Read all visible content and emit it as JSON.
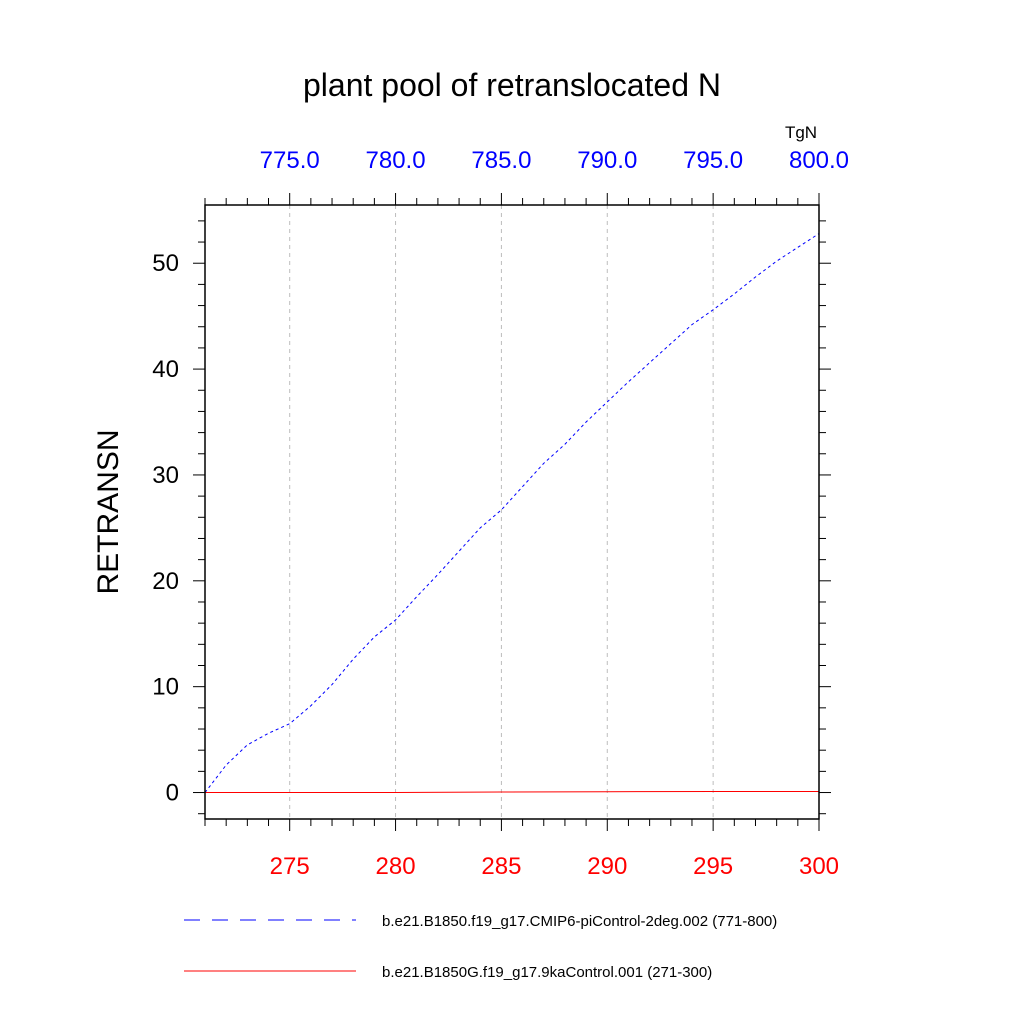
{
  "chart_data": {
    "type": "line",
    "title": "plant pool of retranslocated N",
    "units": "TgN",
    "ylabel": "RETRANSN",
    "ylim": [
      -2.5,
      55.5
    ],
    "yticks": [
      0,
      10,
      20,
      30,
      40,
      50
    ],
    "ytick_labels": [
      "0",
      "10",
      "20",
      "30",
      "40",
      "50"
    ],
    "bottom_axis": {
      "range": [
        271,
        300
      ],
      "ticks": [
        275,
        280,
        285,
        290,
        295,
        300
      ],
      "tick_labels": [
        "275",
        "280",
        "285",
        "290",
        "295",
        "300"
      ],
      "color": "#ff0000"
    },
    "top_axis": {
      "range": [
        771,
        800
      ],
      "ticks": [
        775,
        780,
        785,
        790,
        795,
        800
      ],
      "tick_labels": [
        "775.0",
        "780.0",
        "785.0",
        "790.0",
        "795.0",
        "800.0"
      ],
      "color": "#0000ff"
    },
    "grid": "vertical dashed",
    "legend_position": "bottom",
    "series": [
      {
        "name": "b.e21.B1850.f19_g17.CMIP6-piControl-2deg.002 (771-800)",
        "axis": "top",
        "color": "#0000ff",
        "style": "dashed",
        "x": [
          771,
          772,
          773,
          774,
          775,
          776,
          777,
          778,
          779,
          780,
          781,
          782,
          783,
          784,
          785,
          786,
          787,
          788,
          789,
          790,
          791,
          792,
          793,
          794,
          795,
          796,
          797,
          798,
          799,
          800
        ],
        "y": [
          0.0,
          2.6,
          4.5,
          5.6,
          6.5,
          8.2,
          10.2,
          12.6,
          14.7,
          16.3,
          18.5,
          20.6,
          22.8,
          25.0,
          26.7,
          28.9,
          31.1,
          32.9,
          35.0,
          36.9,
          38.8,
          40.6,
          42.4,
          44.2,
          45.6,
          47.1,
          48.7,
          50.2,
          51.5,
          52.8
        ]
      },
      {
        "name": "b.e21.B1850G.f19_g17.9kaControl.001 (271-300)",
        "axis": "bottom",
        "color": "#ff0000",
        "style": "solid",
        "x": [
          271,
          275,
          280,
          285,
          290,
          295,
          300
        ],
        "y": [
          0.0,
          0.0,
          0.0,
          0.05,
          0.08,
          0.1,
          0.1
        ]
      }
    ]
  }
}
